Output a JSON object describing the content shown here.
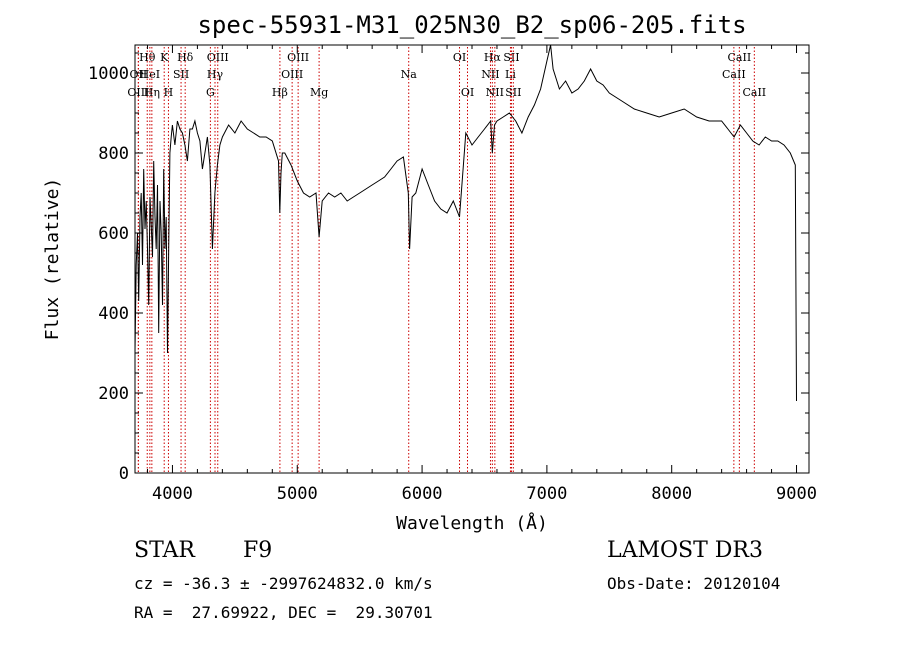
{
  "chart_data": {
    "type": "line",
    "title": "spec-55931-M31_025N30_B2_sp06-205.fits",
    "xlabel": "Wavelength (Å)",
    "ylabel": "Flux (relative)",
    "xlim": [
      3700,
      9100
    ],
    "ylim": [
      0,
      1070
    ],
    "xticks": [
      4000,
      5000,
      6000,
      7000,
      8000,
      9000
    ],
    "yticks": [
      0,
      200,
      400,
      600,
      800,
      1000
    ],
    "grid": false,
    "line_color": "#000000",
    "marker_color": "#cc0000",
    "series": [
      {
        "x": [
          3700,
          3710,
          3720,
          3730,
          3740,
          3750,
          3760,
          3770,
          3780,
          3790,
          3800,
          3810,
          3820,
          3830,
          3840,
          3850,
          3860,
          3870,
          3880,
          3890,
          3900,
          3910,
          3920,
          3930,
          3940,
          3950,
          3960,
          3970,
          3980,
          3990,
          4000,
          4020,
          4040,
          4060,
          4080,
          4100,
          4120,
          4140,
          4160,
          4180,
          4200,
          4220,
          4240,
          4260,
          4280,
          4300,
          4320,
          4340,
          4360,
          4380,
          4400,
          4450,
          4500,
          4550,
          4600,
          4650,
          4700,
          4750,
          4800,
          4850,
          4860,
          4870,
          4880,
          4900,
          4950,
          5000,
          5050,
          5100,
          5150,
          5175,
          5200,
          5250,
          5300,
          5350,
          5400,
          5450,
          5500,
          5550,
          5600,
          5650,
          5700,
          5750,
          5800,
          5850,
          5890,
          5900,
          5920,
          5950,
          6000,
          6050,
          6100,
          6150,
          6200,
          6250,
          6300,
          6350,
          6400,
          6450,
          6500,
          6550,
          6563,
          6580,
          6600,
          6650,
          6700,
          6750,
          6800,
          6850,
          6900,
          6950,
          7000,
          7030,
          7050,
          7100,
          7150,
          7200,
          7250,
          7300,
          7350,
          7400,
          7450,
          7500,
          7600,
          7700,
          7800,
          7900,
          8000,
          8100,
          8200,
          8300,
          8400,
          8450,
          8500,
          8550,
          8600,
          8650,
          8700,
          8750,
          8800,
          8850,
          8900,
          8950,
          8990,
          9000
        ],
        "y": [
          300,
          520,
          600,
          430,
          640,
          700,
          520,
          760,
          610,
          680,
          560,
          420,
          690,
          620,
          540,
          780,
          640,
          560,
          720,
          350,
          680,
          600,
          420,
          760,
          560,
          640,
          300,
          560,
          800,
          840,
          870,
          820,
          880,
          860,
          850,
          820,
          780,
          860,
          860,
          880,
          850,
          830,
          760,
          800,
          840,
          770,
          560,
          700,
          770,
          820,
          840,
          870,
          850,
          880,
          860,
          850,
          840,
          840,
          830,
          780,
          650,
          750,
          800,
          800,
          770,
          730,
          700,
          690,
          700,
          590,
          680,
          700,
          690,
          700,
          680,
          690,
          700,
          710,
          720,
          730,
          740,
          760,
          780,
          790,
          700,
          560,
          690,
          700,
          760,
          720,
          680,
          660,
          650,
          680,
          640,
          850,
          820,
          840,
          860,
          880,
          800,
          870,
          880,
          890,
          900,
          880,
          850,
          890,
          920,
          960,
          1030,
          1070,
          1010,
          960,
          980,
          950,
          960,
          980,
          1010,
          980,
          970,
          950,
          930,
          910,
          900,
          890,
          900,
          910,
          890,
          880,
          880,
          860,
          840,
          870,
          850,
          830,
          820,
          840,
          830,
          830,
          820,
          800,
          770,
          180
        ]
      }
    ],
    "line_markers": [
      {
        "label": "Hθ",
        "wl": 3798,
        "row": 0
      },
      {
        "label": "OII",
        "wl": 3727,
        "row": 1
      },
      {
        "label": "OIII",
        "wl": 3727,
        "row": 2
      },
      {
        "label": "HeI",
        "wl": 3819,
        "row": 1
      },
      {
        "label": "Hη",
        "wl": 3835,
        "row": 2
      },
      {
        "label": "K",
        "wl": 3934,
        "row": 0
      },
      {
        "label": "SII",
        "wl": 4069,
        "row": 1
      },
      {
        "label": "H",
        "wl": 3968,
        "row": 2
      },
      {
        "label": "Hδ",
        "wl": 4102,
        "row": 0
      },
      {
        "label": "OIII",
        "wl": 4363,
        "row": 0
      },
      {
        "label": "Hγ",
        "wl": 4341,
        "row": 1
      },
      {
        "label": "G",
        "wl": 4304,
        "row": 2
      },
      {
        "label": "OIII",
        "wl": 5007,
        "row": 0
      },
      {
        "label": "OIII",
        "wl": 4959,
        "row": 1
      },
      {
        "label": "Hβ",
        "wl": 4861,
        "row": 2
      },
      {
        "label": "Mg",
        "wl": 5175,
        "row": 2
      },
      {
        "label": "Na",
        "wl": 5893,
        "row": 1
      },
      {
        "label": "OI",
        "wl": 6300,
        "row": 0
      },
      {
        "label": "OI",
        "wl": 6364,
        "row": 2
      },
      {
        "label": "Hα",
        "wl": 6563,
        "row": 0
      },
      {
        "label": "SII",
        "wl": 6716,
        "row": 0
      },
      {
        "label": "NII",
        "wl": 6548,
        "row": 1
      },
      {
        "label": "Li",
        "wl": 6708,
        "row": 1
      },
      {
        "label": "NII",
        "wl": 6583,
        "row": 2
      },
      {
        "label": "SII",
        "wl": 6731,
        "row": 2
      },
      {
        "label": "CaII",
        "wl": 8542,
        "row": 0
      },
      {
        "label": "CaII",
        "wl": 8498,
        "row": 1
      },
      {
        "label": "CaII",
        "wl": 8662,
        "row": 2
      }
    ]
  },
  "info": {
    "object_class": "STAR",
    "subclass": "F9",
    "survey": "LAMOST DR3",
    "redshift_line": "cz = -36.3 ± -2997624832.0 km/s",
    "obs_date": "Obs-Date: 20120104",
    "coords": "RA =  27.69922, DEC =  29.30701"
  }
}
